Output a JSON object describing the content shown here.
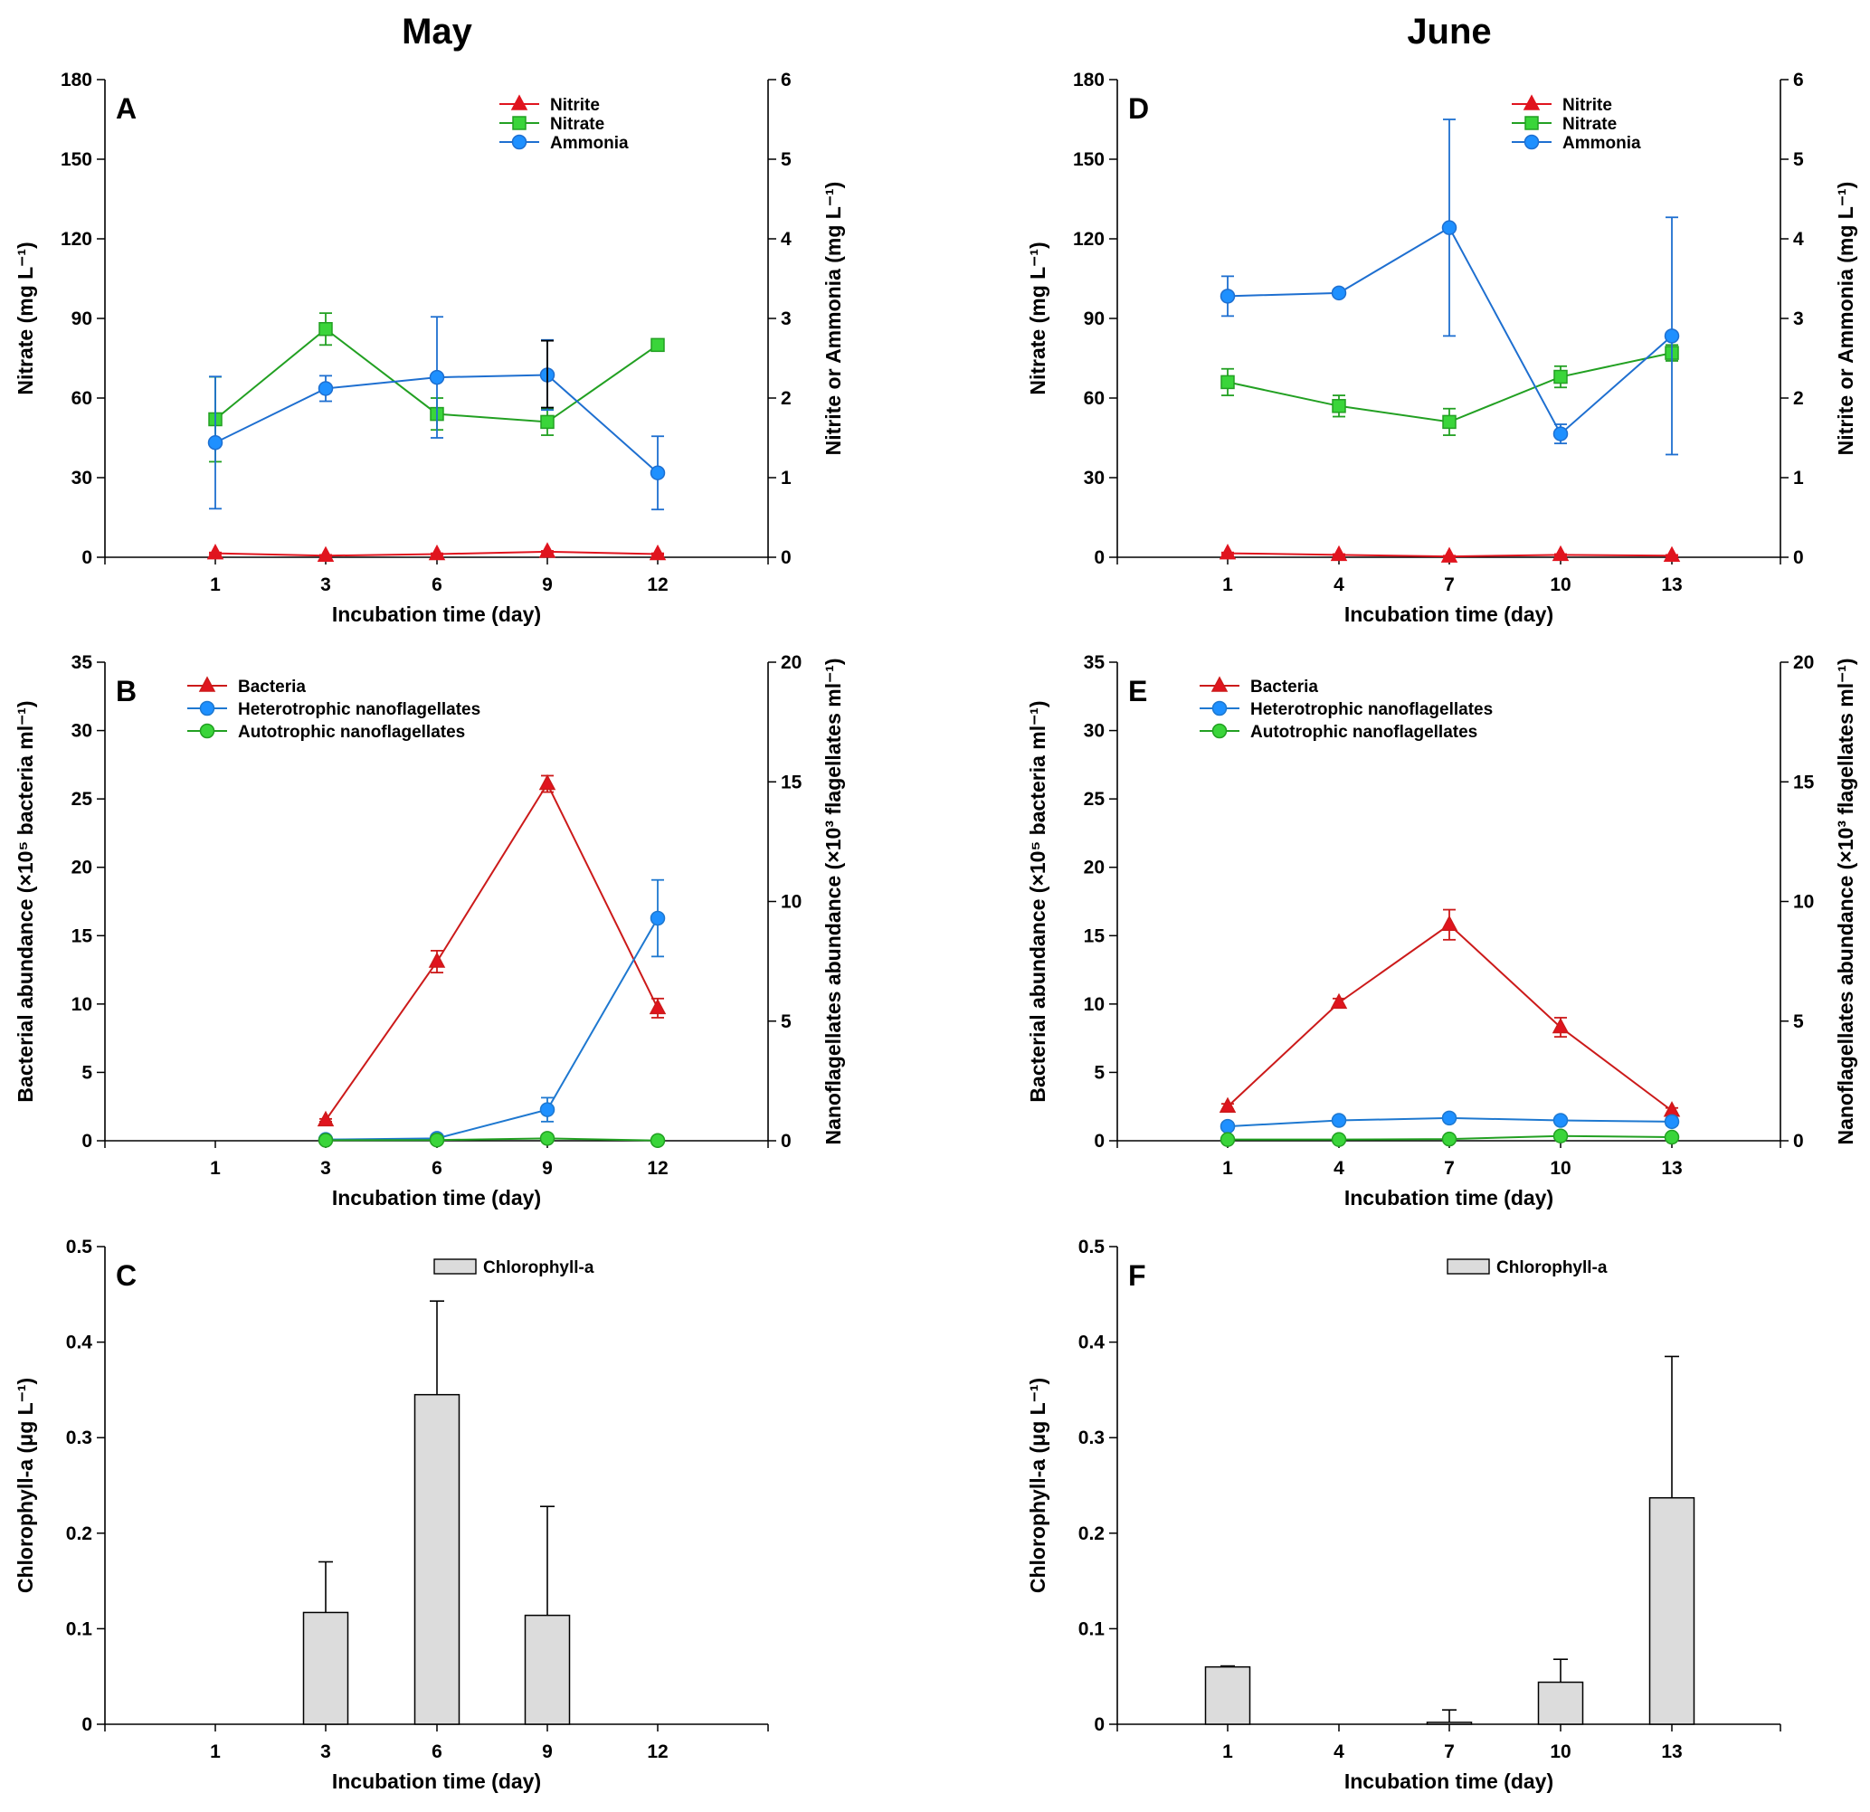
{
  "columns": [
    "May",
    "June"
  ],
  "colors": {
    "nitrite": "#e0141e",
    "nitrate": "#22a022",
    "nitrate_fill": "#3ad53a",
    "ammonia": "#1e6fd0",
    "ammonia_fill": "#1e90ff",
    "bacteria": "#cc1a1a",
    "hnf": "#1e78d0",
    "anf": "#22a022",
    "anf_fill": "#3ad53a",
    "bar_fill": "#dcdcdc"
  },
  "chart_data": [
    {
      "id": "A",
      "type": "line",
      "letter": "A",
      "column": "May",
      "categories": [
        "1",
        "3",
        "6",
        "9",
        "12"
      ],
      "xlabel": "Incubation time (day)",
      "ylabel": "Nitrate (mg L⁻¹)",
      "ylim": [
        0,
        180
      ],
      "yticks": [
        "0",
        "30",
        "60",
        "90",
        "120",
        "150",
        "180"
      ],
      "y2label": "Nitrite or Ammonia (mg L⁻¹)",
      "y2lim": [
        0,
        6
      ],
      "y2ticks": [
        "0",
        "1",
        "2",
        "3",
        "4",
        "5",
        "6"
      ],
      "legend_labels": [
        "Nitrite",
        "Nitrate",
        "Ammonia"
      ],
      "series": [
        {
          "name": "Nitrite",
          "axis": "y2",
          "marker": "triangle",
          "values": [
            0.05,
            0.02,
            0.04,
            0.07,
            0.04
          ],
          "err": [
            0.01,
            0.01,
            0.01,
            0.01,
            0.01
          ]
        },
        {
          "name": "Nitrate",
          "axis": "y",
          "marker": "square",
          "values": [
            52,
            86,
            54,
            51,
            80
          ],
          "err": [
            16,
            6,
            6,
            5,
            1
          ]
        },
        {
          "name": "Ammonia",
          "axis": "y2",
          "marker": "circle",
          "values": [
            1.44,
            2.12,
            2.26,
            2.29,
            1.06
          ],
          "err": [
            0.83,
            0.16,
            0.76,
            0.44,
            0.46
          ]
        },
        {
          "name": "Ammonia (bar)",
          "axis": "y2",
          "marker": "none",
          "values": [
            null,
            null,
            null,
            2.3,
            null
          ],
          "err": [
            null,
            null,
            null,
            0.42,
            null
          ]
        }
      ]
    },
    {
      "id": "D",
      "type": "line",
      "letter": "D",
      "column": "June",
      "categories": [
        "1",
        "4",
        "7",
        "10",
        "13"
      ],
      "xlabel": "Incubation time (day)",
      "ylabel": "Nitrate (mg L⁻¹)",
      "ylim": [
        0,
        180
      ],
      "yticks": [
        "0",
        "30",
        "60",
        "90",
        "120",
        "150",
        "180"
      ],
      "y2label": "Nitrite or Ammonia (mg L⁻¹)",
      "y2lim": [
        0,
        6
      ],
      "y2ticks": [
        "0",
        "1",
        "2",
        "3",
        "4",
        "5",
        "6"
      ],
      "legend_labels": [
        "Nitrite",
        "Nitrate",
        "Ammonia"
      ],
      "series": [
        {
          "name": "Nitrite",
          "axis": "y2",
          "marker": "triangle",
          "values": [
            0.05,
            0.03,
            0.01,
            0.03,
            0.02
          ],
          "err": [
            0.01,
            0.01,
            0.01,
            0.01,
            0.01
          ]
        },
        {
          "name": "Nitrate",
          "axis": "y",
          "marker": "square",
          "values": [
            66,
            57,
            51,
            68,
            77
          ],
          "err": [
            5,
            4,
            5,
            4,
            3
          ]
        },
        {
          "name": "Ammonia",
          "axis": "y2",
          "marker": "circle",
          "values": [
            3.28,
            3.32,
            4.14,
            1.55,
            2.78
          ],
          "err": [
            0.25,
            0.02,
            1.36,
            0.12,
            1.49
          ]
        }
      ]
    },
    {
      "id": "B",
      "type": "line",
      "letter": "B",
      "column": "May",
      "categories": [
        "1",
        "3",
        "6",
        "9",
        "12"
      ],
      "xlabel": "Incubation time (day)",
      "ylabel": "Bacterial abundance (×10⁵ bacteria ml⁻¹)",
      "ylim": [
        0,
        35
      ],
      "yticks": [
        "0",
        "5",
        "10",
        "15",
        "20",
        "25",
        "30",
        "35"
      ],
      "y2label": "Nanoflagellates abundance (×10³ flagellates ml⁻¹)",
      "y2lim": [
        0,
        20
      ],
      "y2ticks": [
        "0",
        "5",
        "10",
        "15",
        "20"
      ],
      "legend_labels": [
        "Bacteria",
        "Heterotrophic nanoflagellates",
        "Autotrophic nanoflagellates"
      ],
      "series": [
        {
          "name": "Bacteria",
          "axis": "y",
          "marker": "triangle",
          "values": [
            null,
            1.5,
            13.1,
            26.1,
            9.7
          ],
          "err": [
            null,
            0.1,
            0.8,
            0.6,
            0.7
          ]
        },
        {
          "name": "Heterotrophic nanoflagellates",
          "axis": "y2",
          "marker": "circle",
          "values": [
            null,
            0.05,
            0.1,
            1.3,
            9.3
          ],
          "err": [
            null,
            0.01,
            0.02,
            0.5,
            1.6
          ]
        },
        {
          "name": "Autotrophic nanoflagellates",
          "axis": "y2",
          "marker": "circle",
          "values": [
            null,
            0.02,
            0.03,
            0.1,
            0.01
          ],
          "err": [
            null,
            0,
            0,
            0,
            0
          ]
        }
      ]
    },
    {
      "id": "E",
      "type": "line",
      "letter": "E",
      "column": "June",
      "categories": [
        "1",
        "4",
        "7",
        "10",
        "13"
      ],
      "xlabel": "Incubation time (day)",
      "ylabel": "Bacterial abundance (×10⁵ bacteria ml⁻¹)",
      "ylim": [
        0,
        35
      ],
      "yticks": [
        "0",
        "5",
        "10",
        "15",
        "20",
        "25",
        "30",
        "35"
      ],
      "y2label": "Nanoflagellates abundance (×10³ flagellates ml⁻¹)",
      "y2lim": [
        0,
        20
      ],
      "y2ticks": [
        "0",
        "5",
        "10",
        "15",
        "20"
      ],
      "legend_labels": [
        "Bacteria",
        "Heterotrophic nanoflagellates",
        "Autotrophic nanoflagellates"
      ],
      "series": [
        {
          "name": "Bacteria",
          "axis": "y",
          "marker": "triangle",
          "values": [
            2.5,
            10.1,
            15.8,
            8.3,
            2.2
          ],
          "err": [
            0.2,
            0.3,
            1.1,
            0.7,
            0.2
          ]
        },
        {
          "name": "Heterotrophic nanoflagellates",
          "axis": "y2",
          "marker": "circle",
          "values": [
            0.6,
            0.85,
            0.95,
            0.85,
            0.8
          ],
          "err": [
            0.15,
            0.05,
            0.05,
            0.05,
            0.15
          ]
        },
        {
          "name": "Autotrophic nanoflagellates",
          "axis": "y2",
          "marker": "circle",
          "values": [
            0.05,
            0.05,
            0.07,
            0.2,
            0.15
          ],
          "err": [
            0,
            0,
            0,
            0,
            0
          ]
        }
      ]
    },
    {
      "id": "C",
      "type": "bar",
      "letter": "C",
      "column": "May",
      "categories": [
        "1",
        "3",
        "6",
        "9",
        "12"
      ],
      "xlabel": "Incubation time (day)",
      "ylabel": "Chlorophyll-a (μg L⁻¹)",
      "ylim": [
        0,
        0.5
      ],
      "yticks": [
        "0",
        "0.1",
        "0.2",
        "0.3",
        "0.4",
        "0.5"
      ],
      "legend_labels": [
        "Chlorophyll-a"
      ],
      "series": [
        {
          "name": "Chlorophyll-a",
          "values": [
            0,
            0.117,
            0.345,
            0.114,
            0
          ],
          "err": [
            0,
            0.053,
            0.098,
            0.114,
            0
          ]
        }
      ]
    },
    {
      "id": "F",
      "type": "bar",
      "letter": "F",
      "column": "June",
      "categories": [
        "1",
        "4",
        "7",
        "10",
        "13"
      ],
      "xlabel": "Incubation time (day)",
      "ylabel": "Chlorophyll-a (μg L⁻¹)",
      "ylim": [
        0,
        0.5
      ],
      "yticks": [
        "0",
        "0.1",
        "0.2",
        "0.3",
        "0.4",
        "0.5"
      ],
      "legend_labels": [
        "Chlorophyll-a"
      ],
      "series": [
        {
          "name": "Chlorophyll-a",
          "values": [
            0.06,
            0,
            0.002,
            0.044,
            0.237
          ],
          "err": [
            0.001,
            0,
            0.013,
            0.024,
            0.148
          ]
        }
      ]
    }
  ]
}
